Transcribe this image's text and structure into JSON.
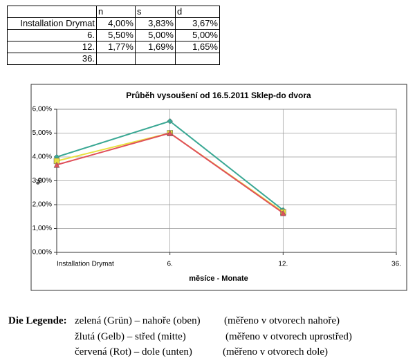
{
  "table": {
    "header": [
      "n",
      "s",
      "d"
    ],
    "rows": [
      [
        "Installation Drymat",
        "4,00%",
        "3,83%",
        "3,67%"
      ],
      [
        "6.",
        "5,50%",
        "5,00%",
        "5,00%"
      ],
      [
        "12.",
        "1,77%",
        "1,69%",
        "1,65%"
      ],
      [
        "36."
      ]
    ]
  },
  "chart_data": {
    "type": "line",
    "title": "Průběh vysoušení od 16.5.2011 Sklep-do dvora",
    "x_label": "měsíce - Monate",
    "y_label": "%",
    "categories": [
      "Installation Drymat",
      "6.",
      "12.",
      "36."
    ],
    "series": [
      {
        "color": "#3aa894",
        "marker": "diamond",
        "values": [
          4.0,
          5.5,
          1.77,
          null
        ]
      },
      {
        "color": "#e8e040",
        "marker": "square",
        "values": [
          3.83,
          5.0,
          1.69,
          null
        ]
      },
      {
        "color": "#e0505a",
        "marker": "triangle",
        "values": [
          3.67,
          5.0,
          1.65,
          null
        ]
      }
    ],
    "ylim": [
      0,
      6
    ],
    "yticks": [
      {
        "value": 0,
        "label": "0,00%"
      },
      {
        "value": 1,
        "label": "1,00%"
      },
      {
        "value": 2,
        "label": "2,00%"
      },
      {
        "value": 3,
        "label": "3,00%"
      },
      {
        "value": 4,
        "label": "4,00%"
      },
      {
        "value": 5,
        "label": "5,00%"
      },
      {
        "value": 6,
        "label": "6,00%"
      }
    ],
    "grid": true
  },
  "legend_text": {
    "heading": "Die Legende:",
    "lines": [
      [
        "zelená (Grün) – nahoře (oben)",
        "(měřeno v otvorech nahoře)"
      ],
      [
        "žlutá (Gelb) – střed (mitte)",
        "(měřeno v otvorech uprostřed)"
      ],
      [
        "červená (Rot) – dole (unten)",
        "(měřeno v otvorech dole)"
      ]
    ]
  }
}
